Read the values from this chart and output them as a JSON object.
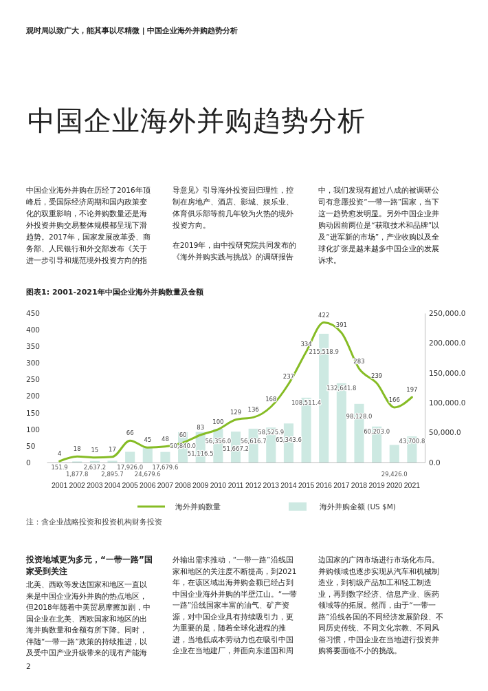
{
  "chart_data": {
    "type": "bar",
    "title": "图表1: 2001-2021年中国企业海外并购数量及金额",
    "categories": [
      "2001",
      "2002",
      "2003",
      "2004",
      "2005",
      "2006",
      "2007",
      "2008",
      "2009",
      "2010",
      "2011",
      "2012",
      "2013",
      "2014",
      "2015",
      "2016",
      "2017",
      "2018",
      "2019",
      "2020",
      "2021"
    ],
    "series": [
      {
        "name": "海外并购金额 (US $M)",
        "axis": "y2",
        "color": "#cde9e2",
        "values": [
          151.9,
          1877.8,
          2637.2,
          2895.7,
          17926.0,
          24679.6,
          17679.6,
          50840.0,
          51116.5,
          56356.0,
          51667.2,
          56616.7,
          58525.9,
          65343.6,
          108511.4,
          215518.9,
          132641.8,
          98128.0,
          60203.0,
          29426.0,
          43700.8
        ],
        "value_labels": [
          "151.9",
          "1,877.8",
          "2,637.2",
          "2,895.7",
          "17,926.0",
          "24,679.6",
          "17,679.6",
          "50,840.0",
          "51,116.5",
          "56,356.0",
          "51,667.2",
          "56,616.7",
          "58,525.9",
          "65,343.6",
          "108,511.4",
          "215,518.9",
          "132,641.8",
          "98,128.0",
          "60,203.0",
          "29,426.0",
          "43,700.8"
        ]
      },
      {
        "name": "海外并购数量",
        "type": "line",
        "axis": "y",
        "color": "#86bc25",
        "values": [
          4,
          18,
          15,
          17,
          66,
          45,
          48,
          60,
          83,
          100,
          129,
          136,
          168,
          237,
          334,
          422,
          391,
          283,
          239,
          166,
          197
        ],
        "value_labels": [
          "4",
          "18",
          "15",
          "17",
          "66",
          "45",
          "48",
          "60",
          "83",
          "100",
          "129",
          "136",
          "168",
          "237",
          "334",
          "422",
          "391",
          "283",
          "239",
          "166",
          "197"
        ]
      }
    ],
    "ylim": [
      0,
      450
    ],
    "yticks": [
      0,
      50,
      100,
      150,
      200,
      250,
      300,
      350,
      400,
      450
    ],
    "y2lim": [
      0,
      250000
    ],
    "y2ticks": [
      {
        "value": 0,
        "label": "0.0"
      },
      {
        "value": 50000,
        "label": "50,000.0"
      },
      {
        "value": 100000,
        "label": "100,000.0"
      },
      {
        "value": 150000,
        "label": "150,000.0"
      },
      {
        "value": 200000,
        "label": "200,000.0"
      },
      {
        "value": 250000,
        "label": "250,000.0"
      }
    ],
    "legend": "bottom",
    "marker": "none",
    "line_style": "solid",
    "annotations": [
      "观时局以致广大，能其事以尽精微 | 中国企业海外并购趋势分析",
      "中国企业海外并购趋势分析",
      "中国企业海外并购在历经了2016年顶峰后，受国际经济周期和国内政策变化的双重影响，不论并购数量还是海外投资并购交易整体规模都呈现下滑趋势。2017年，国家发展改革委、商务部、人民银行和外交部发布《关于进一步引导和规范境外投资方向的指导意见》引导海外投资回归理性，控制在房地产、酒店、影城、娱乐业、体育俱乐部等前几年较为火热的境外投资方向。",
      "在2019年，由中投研究院共同发布的《海外并购实践与挑战》的调研报告中，我们发现有超过八成的被调研公司有意愿投资“一带一路”国家，当下这一趋势愈发明显。另外中国企业并购动因前两位是“获取技术和品牌”以及“进军新的市场”，产业收购以及全球化扩张是越来越多中国企业的发展诉求。",
      "注：含企业战略投资和投资机构财务投资",
      "投资地域更为多元，“一带一路”国家受到关注",
      "北美、西欧等发达国家和地区一直以来是中国企业海外并购的热点地区，但2018年随着中美贸易摩擦加剧，中国企业在北美、西欧国家和地区的出海并购数量和金额有所下降。同时，伴随“一带一路”政策的持续推进，以及受中国产业升级带来的现有产能海外输出需求推动，“一带一路”沿线国家和地区的关注度不断提高，到2021年，在该区域出海并购金额已经占到中国企业海外并购的半壁江山。“一带一路”沿线国家丰富的油气、矿产资源，对中国企业具有持续吸引力，更为重要的是，随着全球化进程的推进，当地低成本劳动力也在吸引中国企业在当地建厂，并面向东道国和周边国家的广阔市场进行市场化布局。并购领域也逐步实现从汽车和机械制造业，到初级产品加工和轻工制造业，再到数字经济、信息产业、医药领域等的拓展。然而，由于“一带一路”沿线各国的不同经济发展阶段、不同历史传统、不同文化宗教、不同风俗习惯，中国企业在当地进行投资并购将要面临不小的挑战。",
      "2"
    ]
  }
}
